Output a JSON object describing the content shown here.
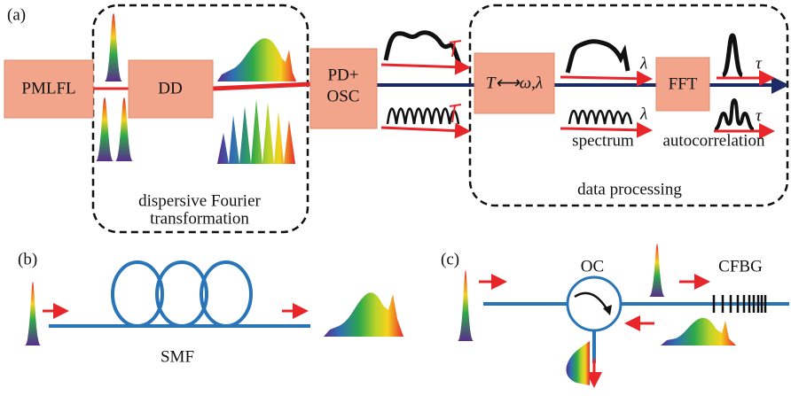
{
  "panel_a": {
    "label": "(a)",
    "nodes": [
      {
        "label": "PMLFL"
      },
      {
        "label": "DD"
      },
      {
        "label_lines": [
          "PD+",
          "OSC"
        ]
      },
      {
        "label": "T⟷ω,λ"
      },
      {
        "label": "FFT"
      }
    ],
    "groups": [
      {
        "label_lines": [
          "dispersive Fourier",
          "transformation"
        ]
      },
      {
        "label": "data processing"
      }
    ],
    "annotations": [
      "λ",
      "λ",
      "τ",
      "τ",
      "spectrum",
      "autocorrelation"
    ]
  },
  "panel_b": {
    "label": "(b)",
    "fiber": "SMF"
  },
  "panel_c": {
    "label": "(c)",
    "circulator": "OC",
    "grating": "CFBG"
  }
}
